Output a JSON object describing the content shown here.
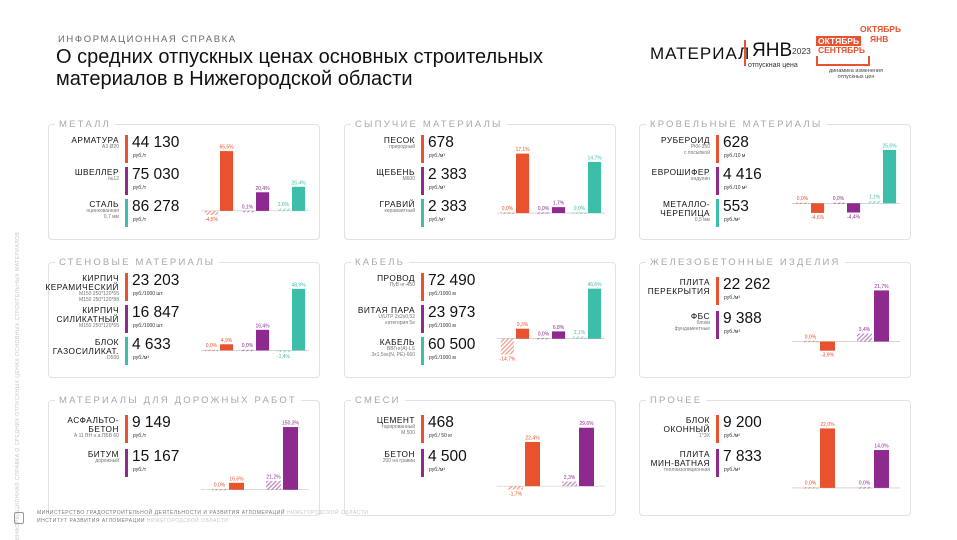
{
  "header": {
    "tag": "ИНФОРМАЦИОННАЯ СПРАВКА",
    "title": "О средних отпускных ценах основных строительных материалов в Нижегородской области"
  },
  "legend": {
    "material": "МАТЕРИАЛ",
    "month": "ЯНВ",
    "price": "отпускная цена",
    "year": "2023",
    "m_oct": "ОКТЯБРЬ",
    "m_jan": "ЯНВ",
    "m_oct2": "ОКТЯБРЬ",
    "m_sep": "СЕНТЯБРЬ",
    "dynamics": "динамика изменения отпускных цен"
  },
  "side_text": "ИНФОРМАЦИОННАЯ СПРАВКА О СРЕДНИХ ОТПУСКНЫХ ЦЕНАХ ОСНОВНЫХ СТРОИТЕЛЬНЫХ МАТЕРИАЛОВ",
  "footer": {
    "line1": "МИНИСТЕРСТВО ГРАДОСТРОИТЕЛЬНОЙ ДЕЯТЕЛЬНОСТИ И РАЗВИТИЯ АГЛОМЕРАЦИЙ",
    "line1b": "НИЖЕГОРОДСКОЙ ОБЛАСТИ",
    "line2": "ИНСТИТУТ РАЗВИТИЯ АГЛОМЕРАЦИИ",
    "line2b": "НИЖЕГОРОДСКОЙ ОБЛАСТИ"
  },
  "colors": {
    "red": "#e8522e",
    "purple": "#8e2a8f",
    "teal": "#3bbfa8",
    "grid": "#bdbdbd"
  },
  "panels": [
    {
      "title": "МЕТАЛЛ",
      "items": [
        {
          "name": "АРМАТУРА",
          "sub": "А3 Ø20",
          "value": "44 130",
          "unit": "руб./т",
          "color": "#e8522e"
        },
        {
          "name": "ШВЕЛЛЕР",
          "sub": "№12",
          "value": "75 030",
          "unit": "руб./т",
          "color": "#8e2a8f"
        },
        {
          "name": "СТАЛЬ",
          "sub": "оцинкованная\n0,7 мм",
          "value": "86 278",
          "unit": "руб./т",
          "color": "#3bbfa8"
        }
      ]
    },
    {
      "title": "СЫПУЧИЕ МАТЕРИАЛЫ",
      "items": [
        {
          "name": "ПЕСОК",
          "sub": "природный",
          "value": "678",
          "unit": "руб./м³",
          "color": "#e8522e"
        },
        {
          "name": "ЩЕБЕНЬ",
          "sub": "М600",
          "value": "2 383",
          "unit": "руб./м³",
          "color": "#8e2a8f"
        },
        {
          "name": "ГРАВИЙ",
          "sub": "керамзитный",
          "value": "2 383",
          "unit": "руб./м³",
          "color": "#3bbfa8"
        }
      ]
    },
    {
      "title": "КРОВЕЛЬНЫЕ МАТЕРИАЛЫ",
      "items": [
        {
          "name": "РУБЕРОИД",
          "sub": "РКК-350\nс посыпкой",
          "value": "628",
          "unit": "руб./10 м",
          "color": "#e8522e"
        },
        {
          "name": "ЕВРОШИФЕР",
          "sub": "ондулин",
          "value": "4 416",
          "unit": "руб./10 м²",
          "color": "#8e2a8f"
        },
        {
          "name": "МЕТАЛЛО-\nЧЕРЕПИЦА",
          "sub": "0,5 мм",
          "value": "553",
          "unit": "руб./м²",
          "color": "#3bbfa8"
        }
      ]
    },
    {
      "title": "СТЕНОВЫЕ МАТЕРИАЛЫ",
      "items": [
        {
          "name": "КИРПИЧ\nКЕРАМИЧЕСКИЙ",
          "sub": "М150 250*120*65\nМ150 250*120*88",
          "value": "23 203",
          "unit": "руб./1000 шт.",
          "color": "#e8522e"
        },
        {
          "name": "КИРПИЧ\nСИЛИКАТНЫЙ",
          "sub": "М150 250*120*65",
          "value": "16 847",
          "unit": "руб./1000 шт.",
          "color": "#8e2a8f"
        },
        {
          "name": "БЛОК\nГАЗОСИЛИКАТ.",
          "sub": "D500",
          "value": "4 633",
          "unit": "руб./м³",
          "color": "#3bbfa8"
        }
      ]
    },
    {
      "title": "КАБЕЛЬ",
      "items": [
        {
          "name": "ПРОВОД",
          "sub": "ПуВ нг-450",
          "value": "72 490",
          "unit": "руб./1000 м",
          "color": "#e8522e"
        },
        {
          "name": "ВИТАЯ ПАРА",
          "sub": "U/UTP 2x2x0,52\nкатегория 5е",
          "value": "23 973",
          "unit": "руб./1000 м",
          "color": "#8e2a8f"
        },
        {
          "name": "КАБЕЛЬ",
          "sub": "ВВГнг(А)-LS\n3х1,5ок(N, PE)-660",
          "value": "60 500",
          "unit": "руб./1000 м",
          "color": "#3bbfa8"
        }
      ]
    },
    {
      "title": "ЖЕЛЕЗОБЕТОННЫЕ ИЗДЕЛИЯ",
      "items": [
        {
          "name": "ПЛИТА\nПЕРЕКРЫТИЯ",
          "sub": "",
          "value": "22 262",
          "unit": "руб./м³",
          "color": "#e8522e"
        },
        {
          "name": "ФБС",
          "sub": "блоки\nфундаментные",
          "value": "9 388",
          "unit": "руб./м³",
          "color": "#8e2a8f"
        }
      ]
    },
    {
      "title": "МАТЕРИАЛЫ ДЛЯ ДОРОЖНЫХ РАБОТ",
      "items": [
        {
          "name": "АСФАЛЬТО-\nБЕТОН",
          "sub": "А 11 ВН н.а.ПБВ 60",
          "value": "9 149",
          "unit": "руб./т",
          "color": "#e8522e"
        },
        {
          "name": "БИТУМ",
          "sub": "дорожный",
          "value": "15 167",
          "unit": "руб./т",
          "color": "#8e2a8f"
        }
      ]
    },
    {
      "title": "СМЕСИ",
      "items": [
        {
          "name": "ЦЕМЕНТ",
          "sub": "тарированный\nМ 500",
          "value": "468",
          "unit": "руб./ 50 кг",
          "color": "#e8522e"
        },
        {
          "name": "БЕТОН",
          "sub": "200 на гравии",
          "value": "4 500",
          "unit": "руб./м³",
          "color": "#8e2a8f"
        }
      ]
    },
    {
      "title": "ПРОЧЕЕ",
      "items": [
        {
          "name": "БЛОК\nОКОННЫЙ",
          "sub": "1*3Х",
          "value": "9 200",
          "unit": "руб./м²",
          "color": "#e8522e"
        },
        {
          "name": "ПЛИТА\nМИН-ВАТНАЯ",
          "sub": "теплоизоляционная",
          "value": "7 833",
          "unit": "руб./м³",
          "color": "#8e2a8f"
        }
      ]
    }
  ],
  "chart_data": [
    {
      "type": "bar",
      "title": "МЕТАЛЛ",
      "series": [
        {
          "name": "Арматура",
          "values": [
            -4.5,
            65.5
          ],
          "labels": [
            "-4,5%",
            "65,5%"
          ],
          "color": "#e8522e"
        },
        {
          "name": "Швеллер",
          "values": [
            0.1,
            20.4
          ],
          "labels": [
            "0,1%",
            "20,4%"
          ],
          "color": "#8e2a8f"
        },
        {
          "name": "Сталь",
          "values": [
            2.6,
            26.4
          ],
          "labels": [
            "2,6%",
            "26,4%"
          ],
          "color": "#3bbfa8"
        }
      ],
      "ylim": [
        -10,
        70
      ]
    },
    {
      "type": "bar",
      "title": "СЫПУЧИЕ МАТЕРИАЛЫ",
      "series": [
        {
          "name": "Песок",
          "values": [
            0.0,
            17.1
          ],
          "labels": [
            "0,0%",
            "17,1%"
          ],
          "color": "#e8522e"
        },
        {
          "name": "Щебень",
          "values": [
            0.0,
            1.7
          ],
          "labels": [
            "0,0%",
            "1,7%"
          ],
          "color": "#8e2a8f"
        },
        {
          "name": "Гравий",
          "values": [
            0.0,
            14.7
          ],
          "labels": [
            "0,0%",
            "14,7%"
          ],
          "color": "#3bbfa8"
        }
      ],
      "ylim": [
        -2,
        19
      ]
    },
    {
      "type": "bar",
      "title": "КРОВЕЛЬНЫЕ МАТЕРИАЛЫ",
      "series": [
        {
          "name": "Рубероид",
          "values": [
            0.0,
            -4.6
          ],
          "labels": [
            "0,0%",
            "-4,6%"
          ],
          "color": "#e8522e"
        },
        {
          "name": "Еврошифер",
          "values": [
            0.0,
            -4.4
          ],
          "labels": [
            "0,0%",
            "-4,4%"
          ],
          "color": "#8e2a8f"
        },
        {
          "name": "Металлочерепица",
          "values": [
            1.1,
            25.6
          ],
          "labels": [
            "1,1%",
            "25,6%"
          ],
          "color": "#3bbfa8"
        }
      ],
      "ylim": [
        -8,
        27
      ]
    },
    {
      "type": "bar",
      "title": "СТЕНОВЫЕ МАТЕРИАЛЫ",
      "series": [
        {
          "name": "Кирпич керамический",
          "values": [
            0.0,
            4.9
          ],
          "labels": [
            "0,0%",
            "4,9%"
          ],
          "color": "#e8522e"
        },
        {
          "name": "Кирпич силикатный",
          "values": [
            0.0,
            16.4
          ],
          "labels": [
            "0,0%",
            "16,4%"
          ],
          "color": "#8e2a8f"
        },
        {
          "name": "Блок газосиликатный",
          "values": [
            -1.4,
            48.9
          ],
          "labels": [
            "-1,4%",
            "48,9%"
          ],
          "color": "#3bbfa8"
        }
      ],
      "ylim": [
        -6,
        52
      ]
    },
    {
      "type": "bar",
      "title": "КАБЕЛЬ",
      "series": [
        {
          "name": "Провод",
          "values": [
            -14.7,
            9.3
          ],
          "labels": [
            "-14,7%",
            "9,3%"
          ],
          "color": "#e8522e"
        },
        {
          "name": "Витая пара",
          "values": [
            0.0,
            6.8
          ],
          "labels": [
            "0,0%",
            "6,8%"
          ],
          "color": "#8e2a8f"
        },
        {
          "name": "Кабель",
          "values": [
            2.1,
            46.6
          ],
          "labels": [
            "2,1%",
            "46,6%"
          ],
          "color": "#3bbfa8"
        }
      ],
      "ylim": [
        -18,
        50
      ]
    },
    {
      "type": "bar",
      "title": "ЖЕЛЕЗОБЕТОННЫЕ ИЗДЕЛИЯ",
      "series": [
        {
          "name": "Плита перекрытия",
          "values": [
            0.0,
            -3.9
          ],
          "labels": [
            "0,0%",
            "-3,9%"
          ],
          "color": "#e8522e"
        },
        {
          "name": "ФБС",
          "values": [
            3.4,
            21.7
          ],
          "labels": [
            "3,4%",
            "21,7%"
          ],
          "color": "#8e2a8f"
        }
      ],
      "ylim": [
        -7,
        24
      ]
    },
    {
      "type": "bar",
      "title": "МАТЕРИАЛЫ ДЛЯ ДОРОЖНЫХ РАБОТ",
      "series": [
        {
          "name": "Асфальтобетон",
          "values": [
            0.0,
            16.6
          ],
          "labels": [
            "0,0%",
            "16,6%"
          ],
          "color": "#e8522e"
        },
        {
          "name": "Битум",
          "values": [
            21.2,
            150.3
          ],
          "labels": [
            "21,2%",
            "150,3%"
          ],
          "color": "#8e2a8f"
        }
      ],
      "ylim": [
        -15,
        160
      ]
    },
    {
      "type": "bar",
      "title": "СМЕСИ",
      "series": [
        {
          "name": "Цемент",
          "values": [
            -1.7,
            22.4
          ],
          "labels": [
            "-1,7%",
            "22,4%"
          ],
          "color": "#e8522e"
        },
        {
          "name": "Бетон",
          "values": [
            2.3,
            29.6
          ],
          "labels": [
            "2,3%",
            "29,6%"
          ],
          "color": "#8e2a8f"
        }
      ],
      "ylim": [
        -5,
        32
      ]
    },
    {
      "type": "bar",
      "title": "ПРОЧЕЕ",
      "series": [
        {
          "name": "Блок оконный",
          "values": [
            0.0,
            22.0
          ],
          "labels": [
            "0,0%",
            "22,0%"
          ],
          "color": "#e8522e"
        },
        {
          "name": "Плита минватная",
          "values": [
            0.0,
            14.0
          ],
          "labels": [
            "0,0%",
            "14,0%"
          ],
          "color": "#8e2a8f"
        }
      ],
      "ylim": [
        -3,
        24
      ]
    }
  ]
}
